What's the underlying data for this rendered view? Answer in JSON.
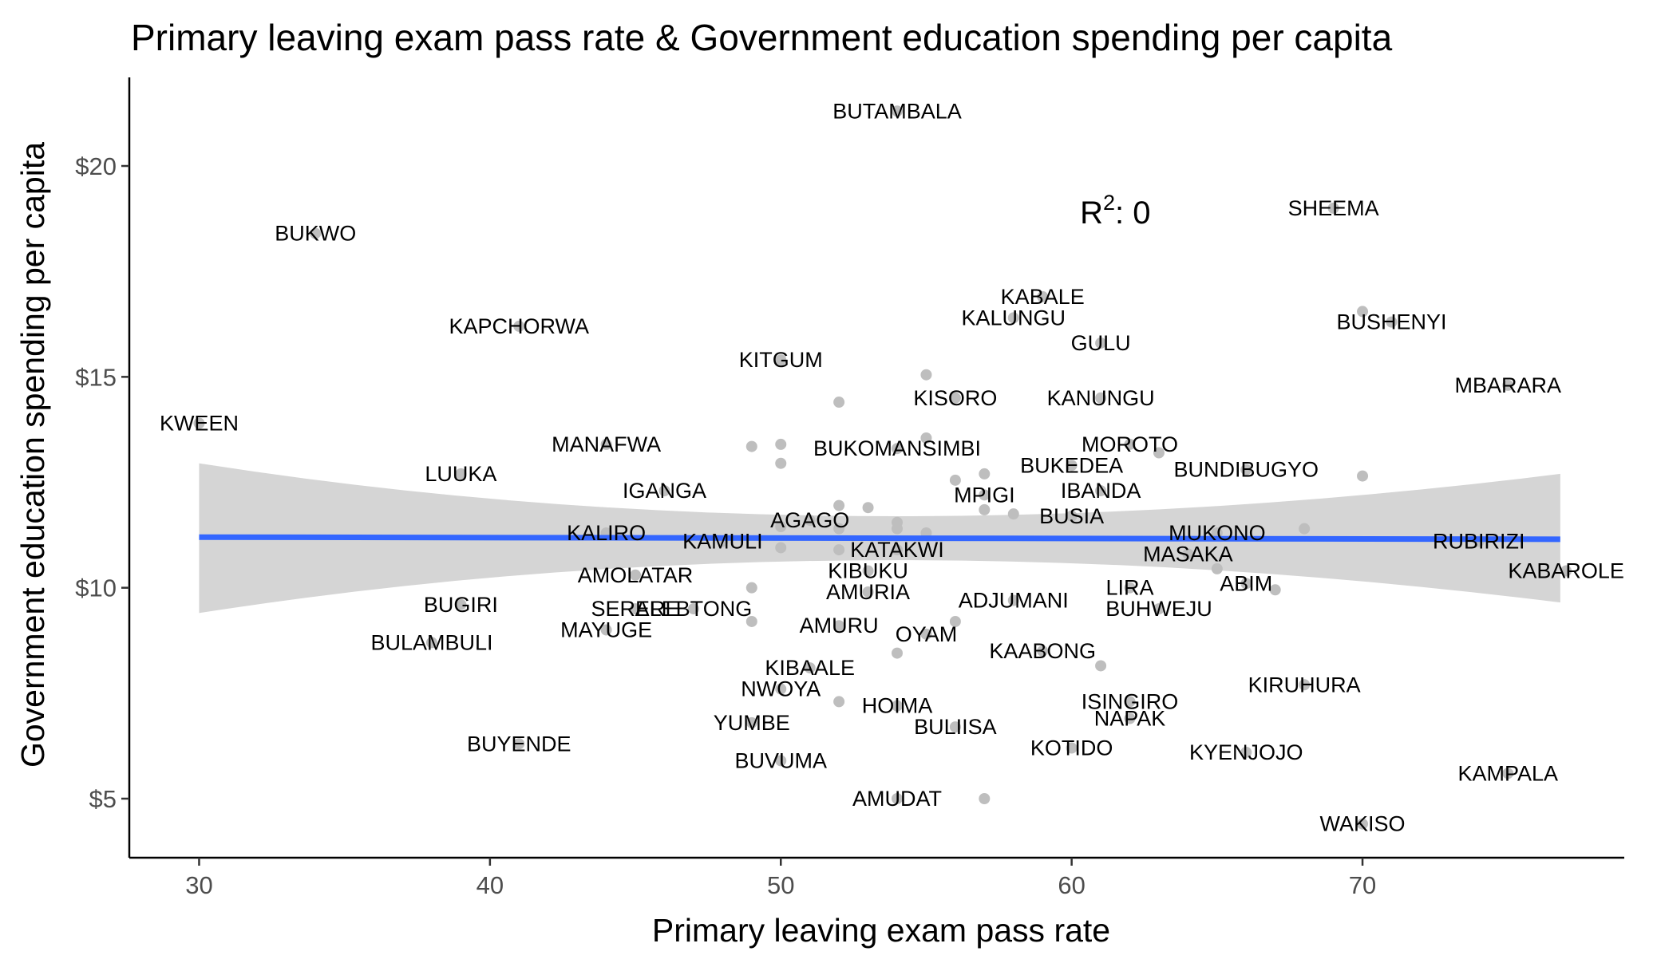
{
  "chart_data": {
    "type": "scatter",
    "title": "Primary leaving exam pass rate & Government education spending per capita",
    "xlabel": "Primary leaving exam pass rate",
    "ylabel": "Government education spending per capita",
    "xlim": [
      27.6,
      79
    ],
    "ylim": [
      3.6,
      22.1
    ],
    "x_ticks": [
      30,
      40,
      50,
      60,
      70
    ],
    "y_ticks": [
      5,
      10,
      15,
      20
    ],
    "y_tick_labels": [
      "$5",
      "$10",
      "$15",
      "$20"
    ],
    "grid": false,
    "legend": "none",
    "annotation": {
      "text_base": "R",
      "superscript": "2",
      "text_rest": ": 0",
      "x": 61.5,
      "y": 18.9
    },
    "trend": {
      "x_start": 30,
      "x_end": 76.8,
      "y_start": 11.2,
      "y_end": 11.15,
      "band_lower": [
        9.4,
        9.65
      ],
      "band_upper": [
        12.95,
        12.7
      ],
      "band_mid_lower": 10.65,
      "band_mid_upper": 11.7,
      "band_mid_x": 52
    },
    "colors": {
      "point": "#bebebe",
      "line": "#3366ff",
      "band": "#d5d5d5",
      "axis": "#000000"
    },
    "points": [
      {
        "label": "BUTAMBALA",
        "x": 54,
        "y": 21.3
      },
      {
        "label": "SHEEMA",
        "x": 69,
        "y": 19.0
      },
      {
        "label": "BUKWO",
        "x": 34,
        "y": 18.4
      },
      {
        "label": "KABALE",
        "x": 59,
        "y": 16.9
      },
      {
        "label": "KALUNGU",
        "x": 58,
        "y": 16.4
      },
      {
        "label": "BUSHENYI",
        "x": 71,
        "y": 16.3
      },
      {
        "label": "KAPCHORWA",
        "x": 41,
        "y": 16.2
      },
      {
        "label": "GULU",
        "x": 61,
        "y": 15.8
      },
      {
        "label": "KITGUM",
        "x": 50,
        "y": 15.4
      },
      {
        "label": "KISORO",
        "x": 56,
        "y": 14.5
      },
      {
        "label": "KANUNGU",
        "x": 61,
        "y": 14.5
      },
      {
        "label": "MBARARA",
        "x": 75,
        "y": 14.8
      },
      {
        "label": "KWEEN",
        "x": 30,
        "y": 13.9
      },
      {
        "label": "MANAFWA",
        "x": 44,
        "y": 13.4
      },
      {
        "label": "BUKOMANSIMBI",
        "x": 54,
        "y": 13.3
      },
      {
        "label": "MOROTO",
        "x": 62,
        "y": 13.4
      },
      {
        "label": "LUUKA",
        "x": 39,
        "y": 12.7
      },
      {
        "label": "BUKEDEA",
        "x": 60,
        "y": 12.9
      },
      {
        "label": "BUNDIBUGYO",
        "x": 66,
        "y": 12.8
      },
      {
        "label": "IGANGA",
        "x": 46,
        "y": 12.3
      },
      {
        "label": "MPIGI",
        "x": 57,
        "y": 12.2
      },
      {
        "label": "IBANDA",
        "x": 61,
        "y": 12.3
      },
      {
        "label": "AGAGO",
        "x": 51,
        "y": 11.6
      },
      {
        "label": "BUSIA",
        "x": 60,
        "y": 11.7
      },
      {
        "label": "KALIRO",
        "x": 44,
        "y": 11.3
      },
      {
        "label": "KAMULI",
        "x": 48,
        "y": 11.1
      },
      {
        "label": "MUKONO",
        "x": 65,
        "y": 11.3
      },
      {
        "label": "RUBIRIZI",
        "x": 74,
        "y": 11.1
      },
      {
        "label": "KATAKWI",
        "x": 54,
        "y": 10.9
      },
      {
        "label": "MASAKA",
        "x": 64,
        "y": 10.8
      },
      {
        "label": "KIBUKU",
        "x": 53,
        "y": 10.4
      },
      {
        "label": "KABAROLE",
        "x": 77,
        "y": 10.4
      },
      {
        "label": "AMOLATAR",
        "x": 45,
        "y": 10.3
      },
      {
        "label": "AMURIA",
        "x": 53,
        "y": 9.9
      },
      {
        "label": "LIRA",
        "x": 62,
        "y": 10.0
      },
      {
        "label": "ABIM",
        "x": 66,
        "y": 10.1
      },
      {
        "label": "BUGIRI",
        "x": 39,
        "y": 9.6
      },
      {
        "label": "SERERE",
        "x": 45,
        "y": 9.5
      },
      {
        "label": "ALEBTONG",
        "x": 47,
        "y": 9.5
      },
      {
        "label": "ADJUMANI",
        "x": 58,
        "y": 9.7
      },
      {
        "label": "BUHWEJU",
        "x": 63,
        "y": 9.5
      },
      {
        "label": "MAYUGE",
        "x": 44,
        "y": 9.0
      },
      {
        "label": "AMURU",
        "x": 52,
        "y": 9.1
      },
      {
        "label": "OYAM",
        "x": 55,
        "y": 8.9
      },
      {
        "label": "BULAMBULI",
        "x": 38,
        "y": 8.7
      },
      {
        "label": "KAABONG",
        "x": 59,
        "y": 8.5
      },
      {
        "label": "KIBAALE",
        "x": 51,
        "y": 8.1
      },
      {
        "label": "NWOYA",
        "x": 50,
        "y": 7.6
      },
      {
        "label": "KIRUHURA",
        "x": 68,
        "y": 7.7
      },
      {
        "label": "ISINGIRO",
        "x": 62,
        "y": 7.3
      },
      {
        "label": "HOIMA",
        "x": 54,
        "y": 7.2
      },
      {
        "label": "NAPAK",
        "x": 62,
        "y": 6.9
      },
      {
        "label": "YUMBE",
        "x": 49,
        "y": 6.8
      },
      {
        "label": "BULIISA",
        "x": 56,
        "y": 6.7
      },
      {
        "label": "BUYENDE",
        "x": 41,
        "y": 6.3
      },
      {
        "label": "KOTIDO",
        "x": 60,
        "y": 6.2
      },
      {
        "label": "KYENJOJO",
        "x": 66,
        "y": 6.1
      },
      {
        "label": "BUVUMA",
        "x": 50,
        "y": 5.9
      },
      {
        "label": "KAMPALA",
        "x": 75,
        "y": 5.6
      },
      {
        "label": "AMUDAT",
        "x": 54,
        "y": 5.0
      },
      {
        "label": "WAKISO",
        "x": 70,
        "y": 4.4
      }
    ],
    "unlabeled_points": [
      {
        "x": 70,
        "y": 16.55
      },
      {
        "x": 55,
        "y": 15.05
      },
      {
        "x": 52,
        "y": 14.4
      },
      {
        "x": 55,
        "y": 13.55
      },
      {
        "x": 49,
        "y": 13.35
      },
      {
        "x": 50,
        "y": 13.4
      },
      {
        "x": 63,
        "y": 13.2
      },
      {
        "x": 50,
        "y": 12.95
      },
      {
        "x": 57,
        "y": 12.7
      },
      {
        "x": 70,
        "y": 12.65
      },
      {
        "x": 56,
        "y": 12.55
      },
      {
        "x": 52,
        "y": 11.95
      },
      {
        "x": 53,
        "y": 11.9
      },
      {
        "x": 57,
        "y": 11.85
      },
      {
        "x": 58,
        "y": 11.75
      },
      {
        "x": 54,
        "y": 11.55
      },
      {
        "x": 54,
        "y": 11.4
      },
      {
        "x": 50,
        "y": 11.45
      },
      {
        "x": 52,
        "y": 11.4
      },
      {
        "x": 68,
        "y": 11.4
      },
      {
        "x": 55,
        "y": 11.3
      },
      {
        "x": 50,
        "y": 10.95
      },
      {
        "x": 52,
        "y": 10.9
      },
      {
        "x": 65,
        "y": 10.45
      },
      {
        "x": 49,
        "y": 10.0
      },
      {
        "x": 67,
        "y": 9.95
      },
      {
        "x": 49,
        "y": 9.2
      },
      {
        "x": 56,
        "y": 9.2
      },
      {
        "x": 54,
        "y": 8.45
      },
      {
        "x": 61,
        "y": 8.15
      },
      {
        "x": 52,
        "y": 7.3
      },
      {
        "x": 57,
        "y": 5.0
      }
    ]
  }
}
